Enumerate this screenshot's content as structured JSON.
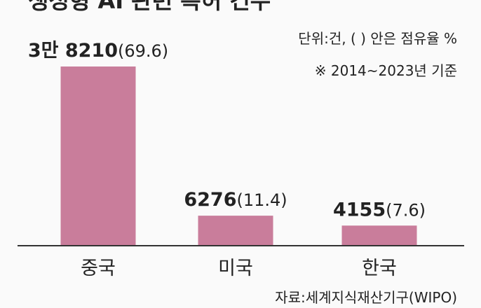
{
  "chart_data": {
    "type": "bar",
    "title": "생성형 AI 관련 특허 건수",
    "notes": [
      "단위:건, (    ) 안은 점유율 %",
      "※ 2014~2023년 기준"
    ],
    "source": "자료:세계지식재산기구(WIPO)",
    "categories": [
      "중국",
      "미국",
      "한국"
    ],
    "values": [
      38210,
      6276,
      4155
    ],
    "value_labels": [
      "3만 8210",
      "6276",
      "4155"
    ],
    "shares": [
      69.6,
      11.4,
      7.6
    ],
    "share_labels": [
      "(69.6)",
      "(11.4)",
      "(7.6)"
    ],
    "color": "#c97d9b"
  }
}
